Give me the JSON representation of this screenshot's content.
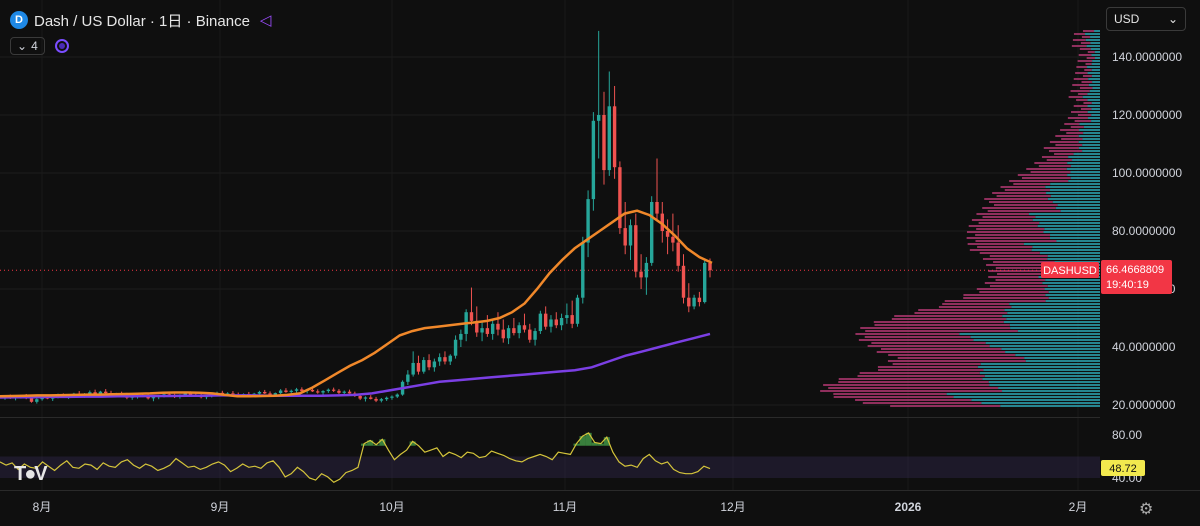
{
  "header": {
    "title": "Dash / US Dollar · 1日 · Binance",
    "coin_icon": "D",
    "indicator_count": "4"
  },
  "currency_select": {
    "label": "USD"
  },
  "icons": {
    "coin": "dash-coin-icon",
    "compare": "compare-icon",
    "settings": "gear-icon",
    "dropdown": "chevron-down-icon"
  },
  "colors": {
    "background": "#0f0f0f",
    "up": "#26a69a",
    "down": "#ef5350",
    "ma_short": "#f0882a",
    "ma_long": "#7b3fe4",
    "rsi": "#d4c43b",
    "price_tag": "#f23645",
    "vp_up": "#2a9aa8",
    "vp_down": "#a7356b"
  },
  "chart_data": [
    {
      "type": "candlestick",
      "symbol": "DASHUSD",
      "last_price": "66.4668809",
      "countdown": "19:40:19",
      "x_ticks": [
        "8月",
        "9月",
        "10月",
        "11月",
        "12月",
        "2026",
        "2月"
      ],
      "y_ticks": [
        "140.0000000",
        "120.0000000",
        "100.0000000",
        "80.0000000",
        "60.0000000",
        "40.0000000",
        "20.0000000"
      ],
      "ylim": [
        18,
        150
      ],
      "candles_ohlc": [
        [
          22.5,
          23.4,
          21.8,
          22.9
        ],
        [
          22.9,
          23.6,
          22.1,
          22.4
        ],
        [
          22.4,
          23.2,
          21.6,
          22.8
        ],
        [
          22.8,
          23.5,
          22.2,
          23.0
        ],
        [
          23.0,
          23.8,
          22.0,
          22.3
        ],
        [
          22.3,
          23.0,
          20.8,
          21.1
        ],
        [
          21.1,
          22.4,
          20.5,
          22.0
        ],
        [
          22.0,
          23.1,
          21.5,
          22.7
        ],
        [
          22.7,
          23.4,
          22.0,
          22.2
        ],
        [
          22.2,
          23.0,
          21.4,
          22.8
        ],
        [
          22.8,
          23.9,
          22.3,
          23.5
        ],
        [
          23.5,
          24.0,
          22.6,
          22.9
        ],
        [
          22.9,
          23.5,
          22.1,
          23.2
        ],
        [
          23.2,
          24.2,
          22.8,
          23.9
        ],
        [
          23.9,
          24.8,
          23.0,
          23.3
        ],
        [
          23.3,
          24.1,
          22.5,
          23.7
        ],
        [
          23.7,
          25.0,
          23.1,
          24.4
        ],
        [
          24.4,
          25.3,
          23.5,
          23.8
        ],
        [
          23.8,
          24.9,
          23.0,
          24.6
        ],
        [
          24.6,
          25.5,
          23.9,
          24.1
        ],
        [
          24.1,
          24.9,
          23.2,
          23.5
        ],
        [
          23.5,
          24.2,
          22.6,
          23.9
        ],
        [
          23.9,
          24.6,
          23.0,
          23.2
        ],
        [
          23.2,
          23.9,
          22.0,
          22.5
        ],
        [
          22.5,
          23.3,
          21.8,
          22.9
        ],
        [
          22.9,
          23.8,
          22.2,
          23.4
        ],
        [
          23.4,
          24.1,
          22.7,
          23.0
        ],
        [
          23.0,
          23.6,
          21.9,
          22.3
        ],
        [
          22.3,
          23.0,
          21.3,
          22.7
        ],
        [
          22.7,
          23.5,
          22.0,
          23.1
        ],
        [
          23.1,
          24.0,
          22.6,
          23.7
        ],
        [
          23.7,
          24.5,
          23.0,
          23.3
        ],
        [
          23.3,
          23.9,
          22.4,
          22.8
        ],
        [
          22.8,
          23.7,
          22.2,
          23.4
        ],
        [
          23.4,
          24.3,
          22.9,
          24.0
        ],
        [
          24.0,
          24.7,
          23.3,
          23.6
        ],
        [
          23.6,
          24.2,
          22.8,
          23.1
        ],
        [
          23.1,
          23.8,
          22.3,
          22.7
        ],
        [
          22.7,
          23.6,
          22.0,
          23.2
        ],
        [
          23.2,
          24.0,
          22.6,
          23.8
        ],
        [
          23.8,
          24.6,
          23.2,
          24.2
        ],
        [
          24.2,
          24.9,
          23.5,
          23.7
        ],
        [
          23.7,
          24.4,
          23.0,
          24.0
        ],
        [
          24.0,
          24.8,
          23.4,
          23.6
        ],
        [
          23.6,
          24.3,
          22.9,
          23.3
        ],
        [
          23.3,
          24.0,
          22.7,
          23.8
        ],
        [
          23.8,
          24.5,
          23.1,
          23.4
        ],
        [
          23.4,
          24.2,
          22.8,
          23.9
        ],
        [
          23.9,
          24.9,
          23.4,
          24.5
        ],
        [
          24.5,
          25.2,
          23.8,
          24.0
        ],
        [
          24.0,
          24.7,
          23.2,
          23.5
        ],
        [
          23.5,
          24.3,
          22.9,
          24.1
        ],
        [
          24.1,
          25.5,
          23.7,
          25.0
        ],
        [
          25.0,
          25.8,
          24.2,
          24.5
        ],
        [
          24.5,
          25.3,
          23.8,
          24.9
        ],
        [
          24.9,
          25.9,
          24.3,
          25.4
        ],
        [
          25.4,
          26.1,
          24.6,
          24.8
        ],
        [
          24.8,
          25.6,
          24.0,
          25.2
        ],
        [
          25.2,
          26.0,
          24.5,
          24.7
        ],
        [
          24.7,
          25.4,
          23.9,
          24.3
        ],
        [
          24.3,
          25.1,
          23.6,
          24.8
        ],
        [
          24.8,
          25.7,
          24.2,
          25.3
        ],
        [
          25.3,
          26.0,
          24.5,
          24.9
        ],
        [
          24.9,
          25.5,
          23.8,
          24.2
        ],
        [
          24.2,
          25.0,
          23.4,
          24.6
        ],
        [
          24.6,
          25.3,
          23.9,
          24.0
        ],
        [
          24.0,
          24.6,
          22.8,
          23.1
        ],
        [
          23.1,
          23.8,
          21.7,
          22.2
        ],
        [
          22.2,
          23.0,
          21.2,
          22.6
        ],
        [
          22.6,
          23.4,
          21.9,
          22.1
        ],
        [
          22.1,
          22.8,
          21.0,
          21.5
        ],
        [
          21.5,
          22.4,
          20.9,
          22.0
        ],
        [
          22.0,
          22.9,
          21.4,
          22.5
        ],
        [
          22.5,
          23.3,
          21.8,
          22.9
        ],
        [
          22.9,
          24.0,
          22.4,
          23.6
        ],
        [
          23.6,
          28.5,
          23.2,
          28.0
        ],
        [
          28.0,
          32.0,
          26.9,
          30.5
        ],
        [
          30.5,
          38.5,
          29.8,
          34.5
        ],
        [
          34.5,
          37.0,
          30.5,
          31.5
        ],
        [
          31.5,
          36.5,
          30.8,
          35.5
        ],
        [
          35.5,
          37.5,
          32.0,
          33.0
        ],
        [
          33.0,
          36.0,
          31.5,
          35.0
        ],
        [
          35.0,
          37.8,
          33.5,
          36.5
        ],
        [
          36.5,
          38.5,
          34.0,
          35.0
        ],
        [
          35.0,
          37.5,
          33.8,
          37.0
        ],
        [
          37.0,
          44.0,
          36.0,
          42.5
        ],
        [
          42.5,
          46.0,
          40.0,
          44.5
        ],
        [
          44.5,
          53.0,
          42.0,
          52.0
        ],
        [
          52.0,
          60.5,
          47.5,
          49.0
        ],
        [
          49.0,
          54.0,
          43.5,
          45.0
        ],
        [
          45.0,
          49.0,
          42.0,
          46.5
        ],
        [
          46.5,
          51.0,
          43.5,
          44.5
        ],
        [
          44.5,
          49.5,
          42.5,
          48.0
        ],
        [
          48.0,
          52.0,
          44.0,
          46.0
        ],
        [
          46.0,
          49.5,
          41.5,
          43.0
        ],
        [
          43.0,
          47.5,
          41.0,
          46.5
        ],
        [
          46.5,
          50.0,
          44.0,
          44.8
        ],
        [
          44.8,
          48.5,
          43.0,
          47.5
        ],
        [
          47.5,
          51.5,
          45.0,
          46.0
        ],
        [
          46.0,
          48.0,
          41.5,
          42.5
        ],
        [
          42.5,
          46.5,
          40.5,
          45.5
        ],
        [
          45.5,
          52.5,
          44.5,
          51.5
        ],
        [
          51.5,
          54.0,
          46.0,
          47.0
        ],
        [
          47.0,
          51.0,
          45.0,
          49.5
        ],
        [
          49.5,
          52.0,
          46.5,
          47.5
        ],
        [
          47.5,
          51.5,
          45.8,
          50.0
        ],
        [
          50.0,
          55.0,
          48.0,
          51.0
        ],
        [
          51.0,
          56.0,
          46.5,
          48.0
        ],
        [
          48.0,
          58.0,
          47.0,
          57.0
        ],
        [
          57.0,
          78.0,
          55.0,
          76.0
        ],
        [
          76.0,
          94.0,
          71.0,
          91.0
        ],
        [
          91.0,
          121.0,
          87.0,
          118.0
        ],
        [
          118.0,
          149.0,
          105.0,
          120.0
        ],
        [
          120.0,
          128.0,
          96.0,
          101.0
        ],
        [
          101.0,
          135.0,
          99.0,
          123.0
        ],
        [
          123.0,
          130.0,
          98.0,
          102.0
        ],
        [
          102.0,
          104.0,
          79.0,
          81.0
        ],
        [
          81.0,
          90.0,
          72.0,
          75.0
        ],
        [
          75.0,
          84.0,
          70.0,
          82.0
        ],
        [
          82.0,
          86.0,
          64.0,
          66.0
        ],
        [
          66.0,
          72.0,
          60.0,
          64.0
        ],
        [
          64.0,
          71.0,
          58.0,
          69.0
        ],
        [
          69.0,
          92.0,
          68.0,
          90.0
        ],
        [
          90.0,
          105.0,
          84.0,
          86.0
        ],
        [
          86.0,
          90.0,
          76.0,
          80.0
        ],
        [
          80.0,
          84.0,
          72.0,
          78.0
        ],
        [
          78.0,
          86.0,
          73.0,
          76.0
        ],
        [
          76.0,
          82.0,
          66.0,
          68.0
        ],
        [
          68.0,
          72.0,
          55.0,
          57.0
        ],
        [
          57.0,
          62.0,
          52.0,
          54.0
        ],
        [
          54.0,
          58.0,
          53.0,
          57.0
        ],
        [
          57.0,
          59.0,
          54.0,
          55.5
        ],
        [
          55.5,
          70.0,
          55.0,
          69.0
        ],
        [
          69.0,
          70.5,
          64.0,
          66.4668809
        ]
      ],
      "indicators": [
        {
          "name": "ma_short",
          "color": "#f0882a",
          "values": [
            23.0,
            23.1,
            23.2,
            23.3,
            23.3,
            23.4,
            23.5,
            23.6,
            23.6,
            23.7,
            23.8,
            23.9,
            24.0,
            24.2,
            24.3,
            24.3,
            24.2,
            24.0,
            23.5,
            23.0,
            23.0,
            23.1,
            23.2,
            23.5,
            24.0,
            26.0,
            28.5,
            31.0,
            33.5,
            35.5,
            38.0,
            41.0,
            44.0,
            45.5,
            46.5,
            47.0,
            47.5,
            48.0,
            48.5,
            49.0,
            50.0,
            52.0,
            55.0,
            60.0,
            65.5,
            70.0,
            74.0,
            77.0,
            80.0,
            83.0,
            86.0,
            87.0,
            85.5,
            82.5,
            78.5,
            74.0,
            71.0,
            69.0
          ]
        },
        {
          "name": "ma_long",
          "color": "#7b3fe4",
          "values": [
            22.6,
            22.7,
            22.7,
            22.8,
            22.8,
            22.9,
            22.9,
            23.0,
            23.0,
            23.1,
            23.1,
            23.2,
            23.2,
            23.3,
            23.3,
            23.3,
            23.2,
            23.2,
            23.2,
            23.2,
            23.3,
            23.5,
            24.0,
            25.0,
            26.0,
            27.0,
            28.0,
            28.5,
            29.0,
            29.5,
            30.0,
            30.5,
            31.0,
            31.5,
            32.0,
            33.0,
            35.0,
            37.0,
            38.5,
            40.0,
            41.5,
            43.0,
            44.5
          ]
        }
      ],
      "volume_profile_note": "horizontal volume-by-price histogram on right edge"
    },
    {
      "type": "line",
      "name": "RSI",
      "y_ticks": [
        "80.00",
        "40.00"
      ],
      "last_value": "48.72",
      "ylim": [
        30,
        85
      ],
      "band": [
        40,
        60
      ],
      "values": [
        55,
        52,
        54,
        48,
        53,
        50,
        49,
        55,
        51,
        47,
        52,
        56,
        50,
        49,
        53,
        52,
        48,
        54,
        51,
        50,
        55,
        57,
        52,
        49,
        53,
        51,
        47,
        49,
        52,
        58,
        54,
        50,
        51,
        48,
        50,
        53,
        55,
        52,
        46,
        49,
        53,
        50,
        51,
        49,
        54,
        56,
        50,
        41,
        44,
        50,
        46,
        40,
        38,
        44,
        41,
        36,
        39,
        45,
        47,
        50,
        72,
        75,
        71,
        76,
        66,
        57,
        62,
        66,
        74,
        70,
        64,
        66,
        68,
        60,
        64,
        62,
        59,
        64,
        63,
        59,
        60,
        65,
        63,
        61,
        58,
        56,
        55,
        58,
        60,
        62,
        60,
        57,
        64,
        63,
        62,
        72,
        79,
        82,
        73,
        72,
        78,
        64,
        55,
        51,
        52,
        50,
        58,
        62,
        56,
        53,
        55,
        48,
        45,
        44,
        44,
        46,
        51,
        48.72
      ]
    }
  ]
}
